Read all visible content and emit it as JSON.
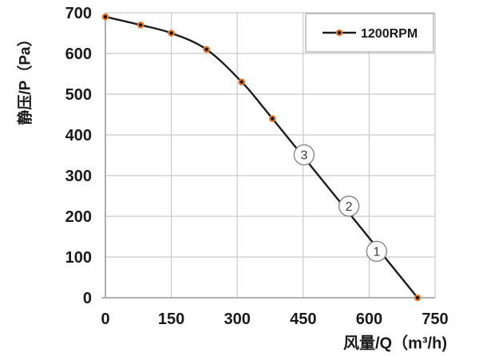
{
  "chart_data": {
    "type": "line",
    "title": "",
    "xlabel": "风量/Q（m³/h)",
    "ylabel": "静压/P（Pa）",
    "xlim": [
      0,
      750
    ],
    "ylim": [
      0,
      700
    ],
    "x_ticks": [
      0,
      150,
      300,
      450,
      600,
      750
    ],
    "y_ticks": [
      0,
      100,
      200,
      300,
      400,
      500,
      600,
      700
    ],
    "grid": true,
    "grid_color": "#c9c9c9",
    "axis_color": "#a6a6a6",
    "tick_label_color": "#1a1a1a",
    "legend": {
      "label": "1200RPM",
      "position": "top-right"
    },
    "series": [
      {
        "name": "1200RPM",
        "points": [
          [
            0,
            690
          ],
          [
            80,
            670
          ],
          [
            150,
            650
          ],
          [
            230,
            610
          ],
          [
            310,
            530
          ],
          [
            380,
            440
          ],
          [
            710,
            0
          ]
        ],
        "line_color": "#1c1c1c",
        "marker_ring_color": "#e8762a",
        "marker_fill_color": "#111111"
      }
    ],
    "annotations": [
      {
        "label": "3",
        "circled": true,
        "x": 452,
        "y": 351
      },
      {
        "label": "2",
        "circled": true,
        "x": 554,
        "y": 225
      },
      {
        "label": "1",
        "circled": true,
        "x": 617,
        "y": 114
      }
    ]
  }
}
